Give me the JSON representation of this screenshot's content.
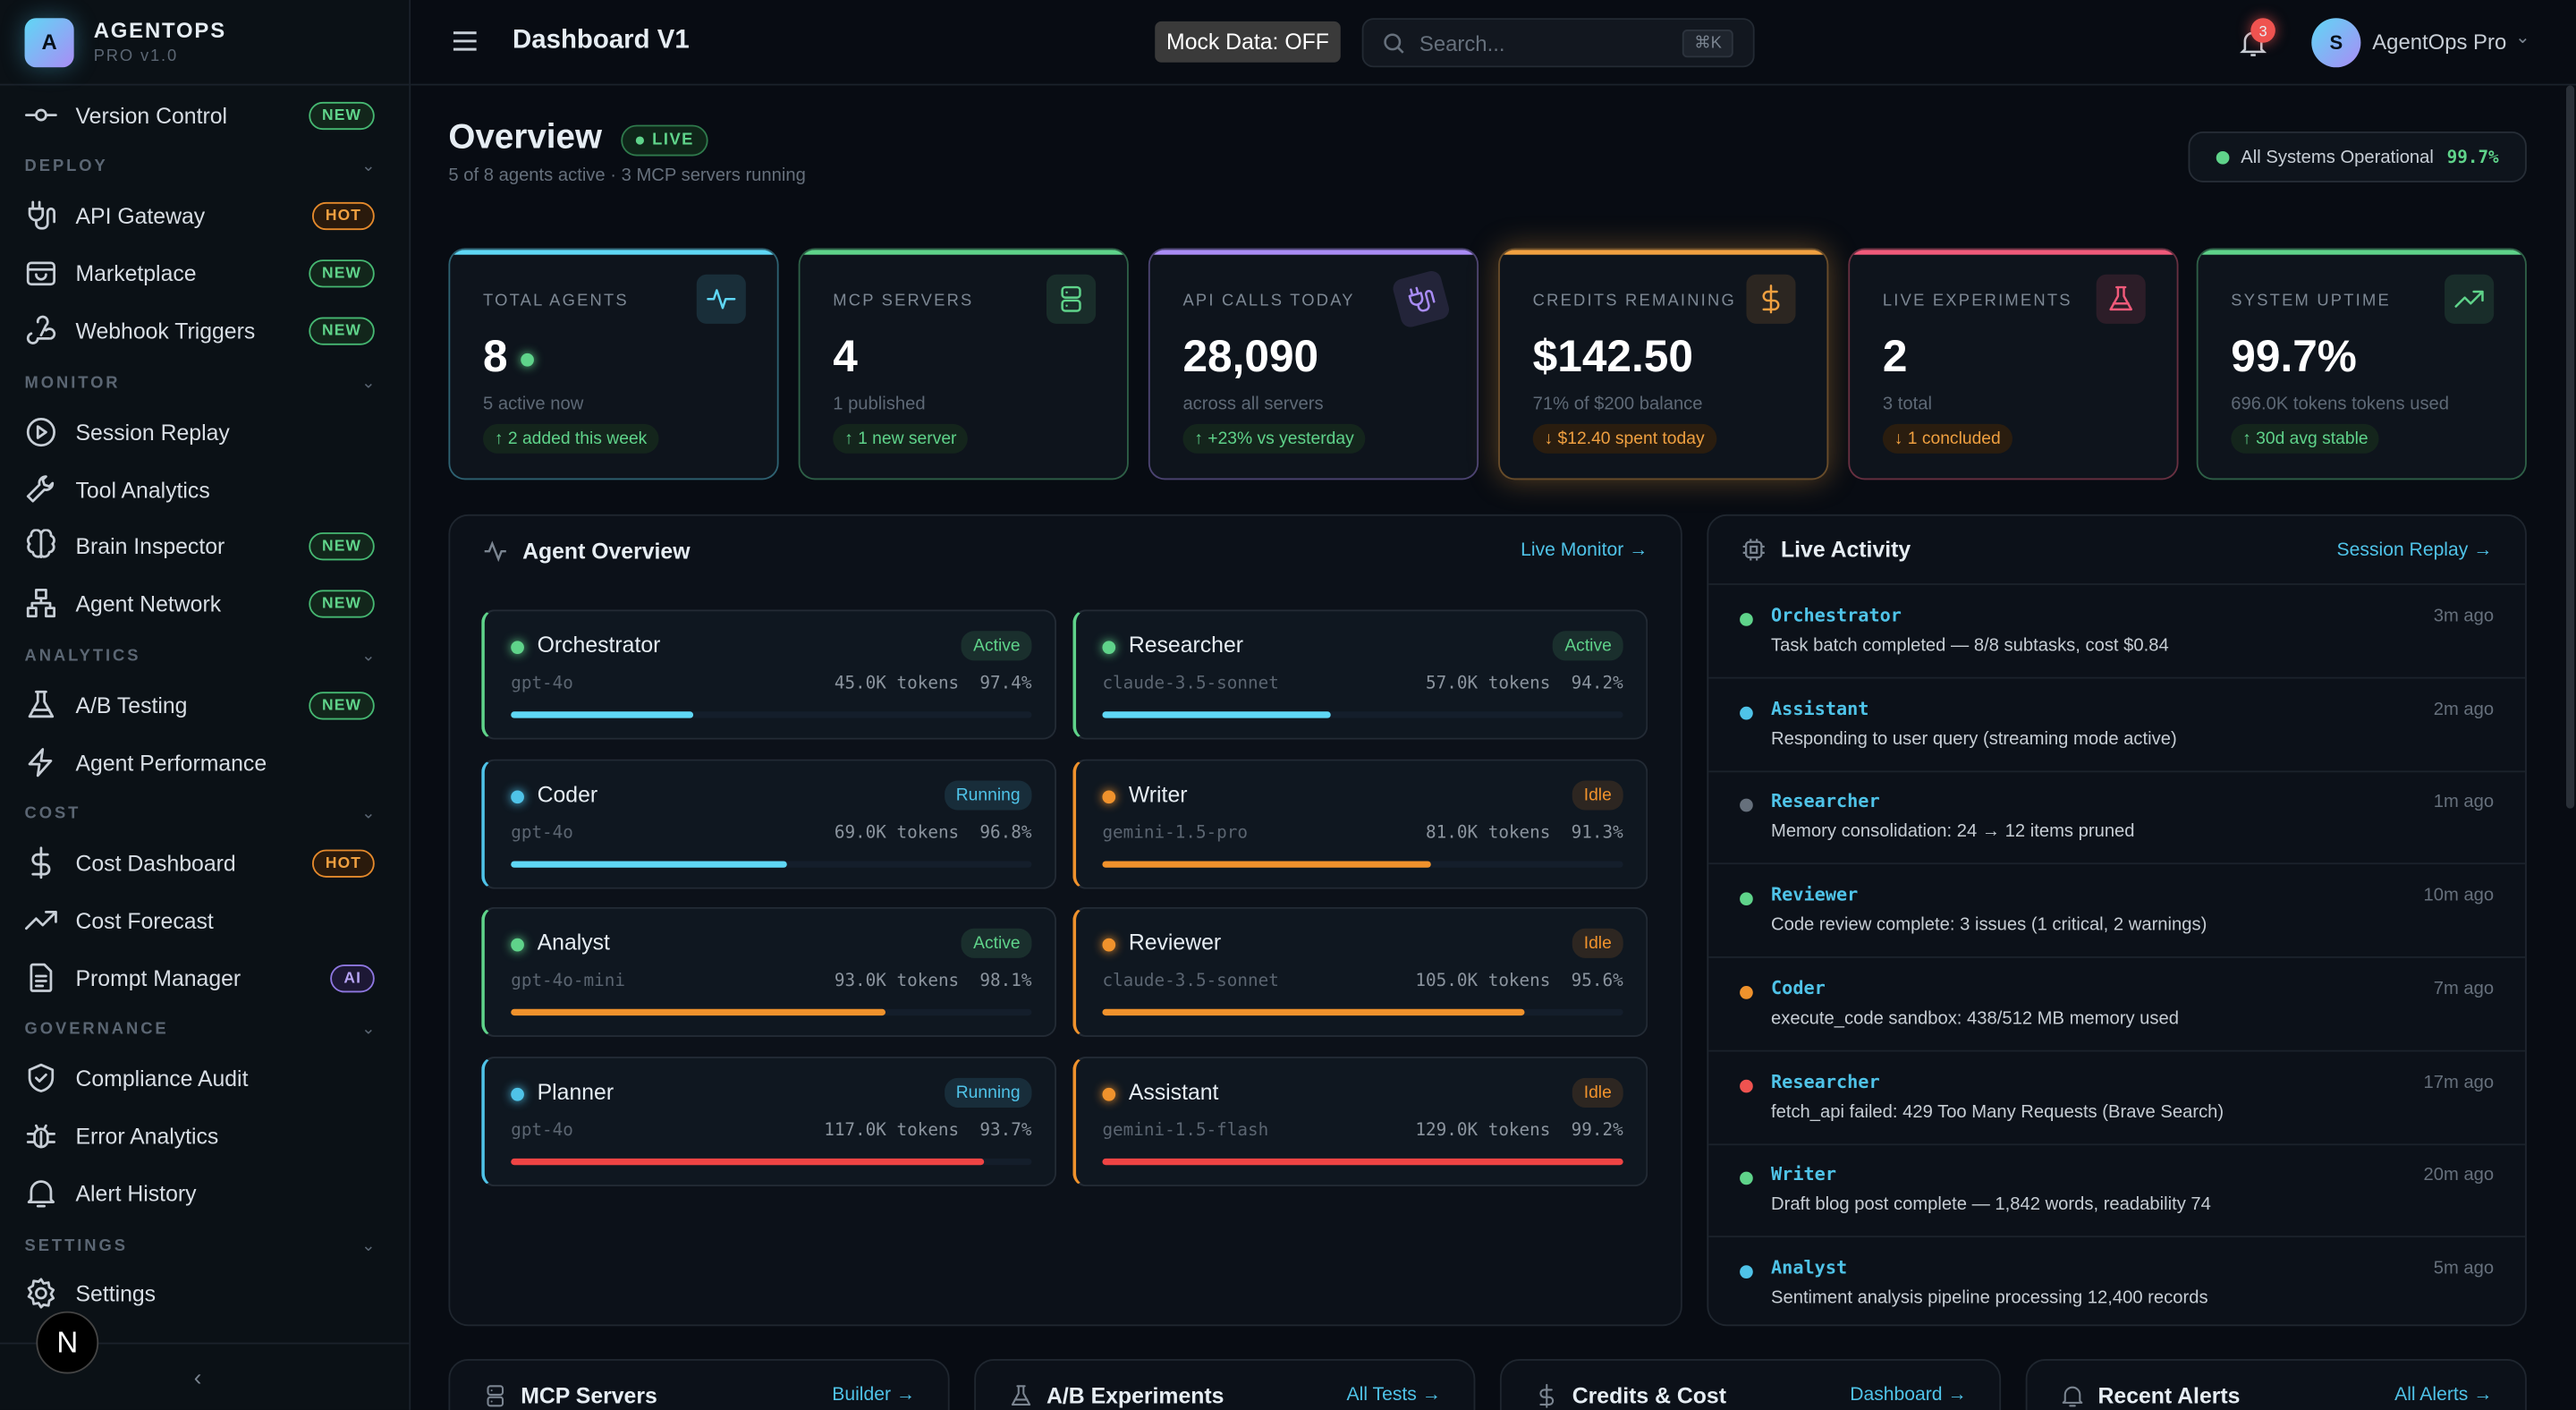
{
  "app": {
    "name": "AGENTOPS",
    "version": "PRO v1.0",
    "logo_letter": "A"
  },
  "sidebar": {
    "items": [
      {
        "label": "Version Control",
        "icon": "git-commit-icon",
        "badge": "NEW",
        "badge_type": "new"
      },
      {
        "section": "DEPLOY"
      },
      {
        "label": "API Gateway",
        "icon": "plug-icon",
        "badge": "HOT",
        "badge_type": "hot"
      },
      {
        "label": "Marketplace",
        "icon": "store-icon",
        "badge": "NEW",
        "badge_type": "new"
      },
      {
        "label": "Webhook Triggers",
        "icon": "webhook-icon",
        "badge": "NEW",
        "badge_type": "new"
      },
      {
        "section": "MONITOR"
      },
      {
        "label": "Session Replay",
        "icon": "play-circle-icon"
      },
      {
        "label": "Tool Analytics",
        "icon": "wrench-icon"
      },
      {
        "label": "Brain Inspector",
        "icon": "brain-icon",
        "badge": "NEW",
        "badge_type": "new"
      },
      {
        "label": "Agent Network",
        "icon": "network-icon",
        "badge": "NEW",
        "badge_type": "new"
      },
      {
        "section": "ANALYTICS"
      },
      {
        "label": "A/B Testing",
        "icon": "flask-icon",
        "badge": "NEW",
        "badge_type": "new"
      },
      {
        "label": "Agent Performance",
        "icon": "zap-icon"
      },
      {
        "section": "COST"
      },
      {
        "label": "Cost Dashboard",
        "icon": "dollar-icon",
        "badge": "HOT",
        "badge_type": "hot"
      },
      {
        "label": "Cost Forecast",
        "icon": "trending-up-icon"
      },
      {
        "label": "Prompt Manager",
        "icon": "file-text-icon",
        "badge": "AI",
        "badge_type": "ai"
      },
      {
        "section": "GOVERNANCE"
      },
      {
        "label": "Compliance Audit",
        "icon": "shield-icon"
      },
      {
        "label": "Error Analytics",
        "icon": "bug-icon"
      },
      {
        "label": "Alert History",
        "icon": "bell-icon"
      },
      {
        "section": "SETTINGS"
      },
      {
        "label": "Settings",
        "icon": "gear-icon"
      }
    ],
    "user_initial": "N"
  },
  "topbar": {
    "title": "Dashboard V1",
    "mock_data": "Mock Data: OFF",
    "search_placeholder": "Search...",
    "shortcut": "⌘K",
    "notifications": "3",
    "user_initial": "S",
    "user_name": "AgentOps Pro"
  },
  "overview": {
    "title": "Overview",
    "live": "LIVE",
    "subtitle": "5 of 8 agents active · 3 MCP servers running",
    "status": "All Systems Operational",
    "uptime": "99.7%"
  },
  "stats": [
    {
      "label": "TOTAL AGENTS",
      "value": "8",
      "sub": "5 active now",
      "chip": "↑ 2 added this week",
      "color": "#5fd7f5",
      "chip_color": "#5fd38a",
      "icon": "activity-icon"
    },
    {
      "label": "MCP SERVERS",
      "value": "4",
      "sub": "1 published",
      "chip": "↑ 1 new server",
      "color": "#5fd38a",
      "chip_color": "#5fd38a",
      "icon": "server-icon"
    },
    {
      "label": "API CALLS TODAY",
      "value": "28,090",
      "sub": "across all servers",
      "chip": "↑ +23% vs yesterday",
      "color": "#a98cf5",
      "chip_color": "#5fd38a",
      "icon": "plug-icon"
    },
    {
      "label": "CREDITS REMAINING",
      "value": "$142.50",
      "sub": "71% of $200 balance",
      "chip": "↓ $12.40 spent today",
      "color": "#f0a040",
      "chip_color": "#f0a040",
      "icon": "dollar-icon"
    },
    {
      "label": "LIVE EXPERIMENTS",
      "value": "2",
      "sub": "3 total",
      "chip": "↓ 1 concluded",
      "color": "#f05a7a",
      "chip_color": "#f0a040",
      "icon": "flask-icon"
    },
    {
      "label": "SYSTEM UPTIME",
      "value": "99.7%",
      "sub": "696.0K tokens tokens used",
      "chip": "↑ 30d avg stable",
      "color": "#5fd38a",
      "chip_color": "#5fd38a",
      "icon": "trending-up-icon"
    }
  ],
  "agent_overview": {
    "title": "Agent Overview",
    "link": "Live Monitor",
    "agents": [
      {
        "name": "Orchestrator",
        "status": "Active",
        "model": "gpt-4o",
        "tokens": "45.0K tokens",
        "success": "97.4%",
        "usage": 0.35,
        "bar_color": "#5fd7f5"
      },
      {
        "name": "Researcher",
        "status": "Active",
        "model": "claude-3.5-sonnet",
        "tokens": "57.0K tokens",
        "success": "94.2%",
        "usage": 0.44,
        "bar_color": "#5fd7f5"
      },
      {
        "name": "Coder",
        "status": "Running",
        "model": "gpt-4o",
        "tokens": "69.0K tokens",
        "success": "96.8%",
        "usage": 0.53,
        "bar_color": "#5fd7f5"
      },
      {
        "name": "Writer",
        "status": "Idle",
        "model": "gemini-1.5-pro",
        "tokens": "81.0K tokens",
        "success": "91.3%",
        "usage": 0.63,
        "bar_color": "#f0922c"
      },
      {
        "name": "Analyst",
        "status": "Active",
        "model": "gpt-4o-mini",
        "tokens": "93.0K tokens",
        "success": "98.1%",
        "usage": 0.72,
        "bar_color": "#f0922c"
      },
      {
        "name": "Reviewer",
        "status": "Idle",
        "model": "claude-3.5-sonnet",
        "tokens": "105.0K tokens",
        "success": "95.6%",
        "usage": 0.81,
        "bar_color": "#f0922c"
      },
      {
        "name": "Planner",
        "status": "Running",
        "model": "gpt-4o",
        "tokens": "117.0K tokens",
        "success": "93.7%",
        "usage": 0.91,
        "bar_color": "#ef4444"
      },
      {
        "name": "Assistant",
        "status": "Idle",
        "model": "gemini-1.5-flash",
        "tokens": "129.0K tokens",
        "success": "99.2%",
        "usage": 1.0,
        "bar_color": "#ef4444"
      }
    ]
  },
  "status_colors": {
    "Active": "#5fd38a",
    "Running": "#4fc3e8",
    "Idle": "#f0922c"
  },
  "live_activity": {
    "title": "Live Activity",
    "link": "Session Replay",
    "items": [
      {
        "agent": "Orchestrator",
        "message": "Task batch completed — 8/8 subtasks, cost $0.84",
        "time": "3m ago",
        "color": "#5fd38a"
      },
      {
        "agent": "Assistant",
        "message": "Responding to user query (streaming mode active)",
        "time": "2m ago",
        "color": "#4fc3e8"
      },
      {
        "agent": "Researcher",
        "message": "Memory consolidation: 24 → 12 items pruned",
        "time": "1m ago",
        "color": "#66707c"
      },
      {
        "agent": "Reviewer",
        "message": "Code review complete: 3 issues (1 critical, 2 warnings)",
        "time": "10m ago",
        "color": "#5fd38a"
      },
      {
        "agent": "Coder",
        "message": "execute_code sandbox: 438/512 MB memory used",
        "time": "7m ago",
        "color": "#f0922c"
      },
      {
        "agent": "Researcher",
        "message": "fetch_api failed: 429 Too Many Requests (Brave Search)",
        "time": "17m ago",
        "color": "#ef5350"
      },
      {
        "agent": "Writer",
        "message": "Draft blog post complete — 1,842 words, readability 74",
        "time": "20m ago",
        "color": "#5fd38a"
      },
      {
        "agent": "Analyst",
        "message": "Sentiment analysis pipeline processing 12,400 records",
        "time": "5m ago",
        "color": "#4fc3e8"
      }
    ]
  },
  "bottom_panels": [
    {
      "title": "MCP Servers",
      "link": "Builder",
      "icon": "server-icon"
    },
    {
      "title": "A/B Experiments",
      "link": "All Tests",
      "icon": "flask-icon"
    },
    {
      "title": "Credits & Cost",
      "link": "Dashboard",
      "icon": "dollar-icon"
    },
    {
      "title": "Recent Alerts",
      "link": "All Alerts",
      "icon": "bell-icon"
    }
  ]
}
